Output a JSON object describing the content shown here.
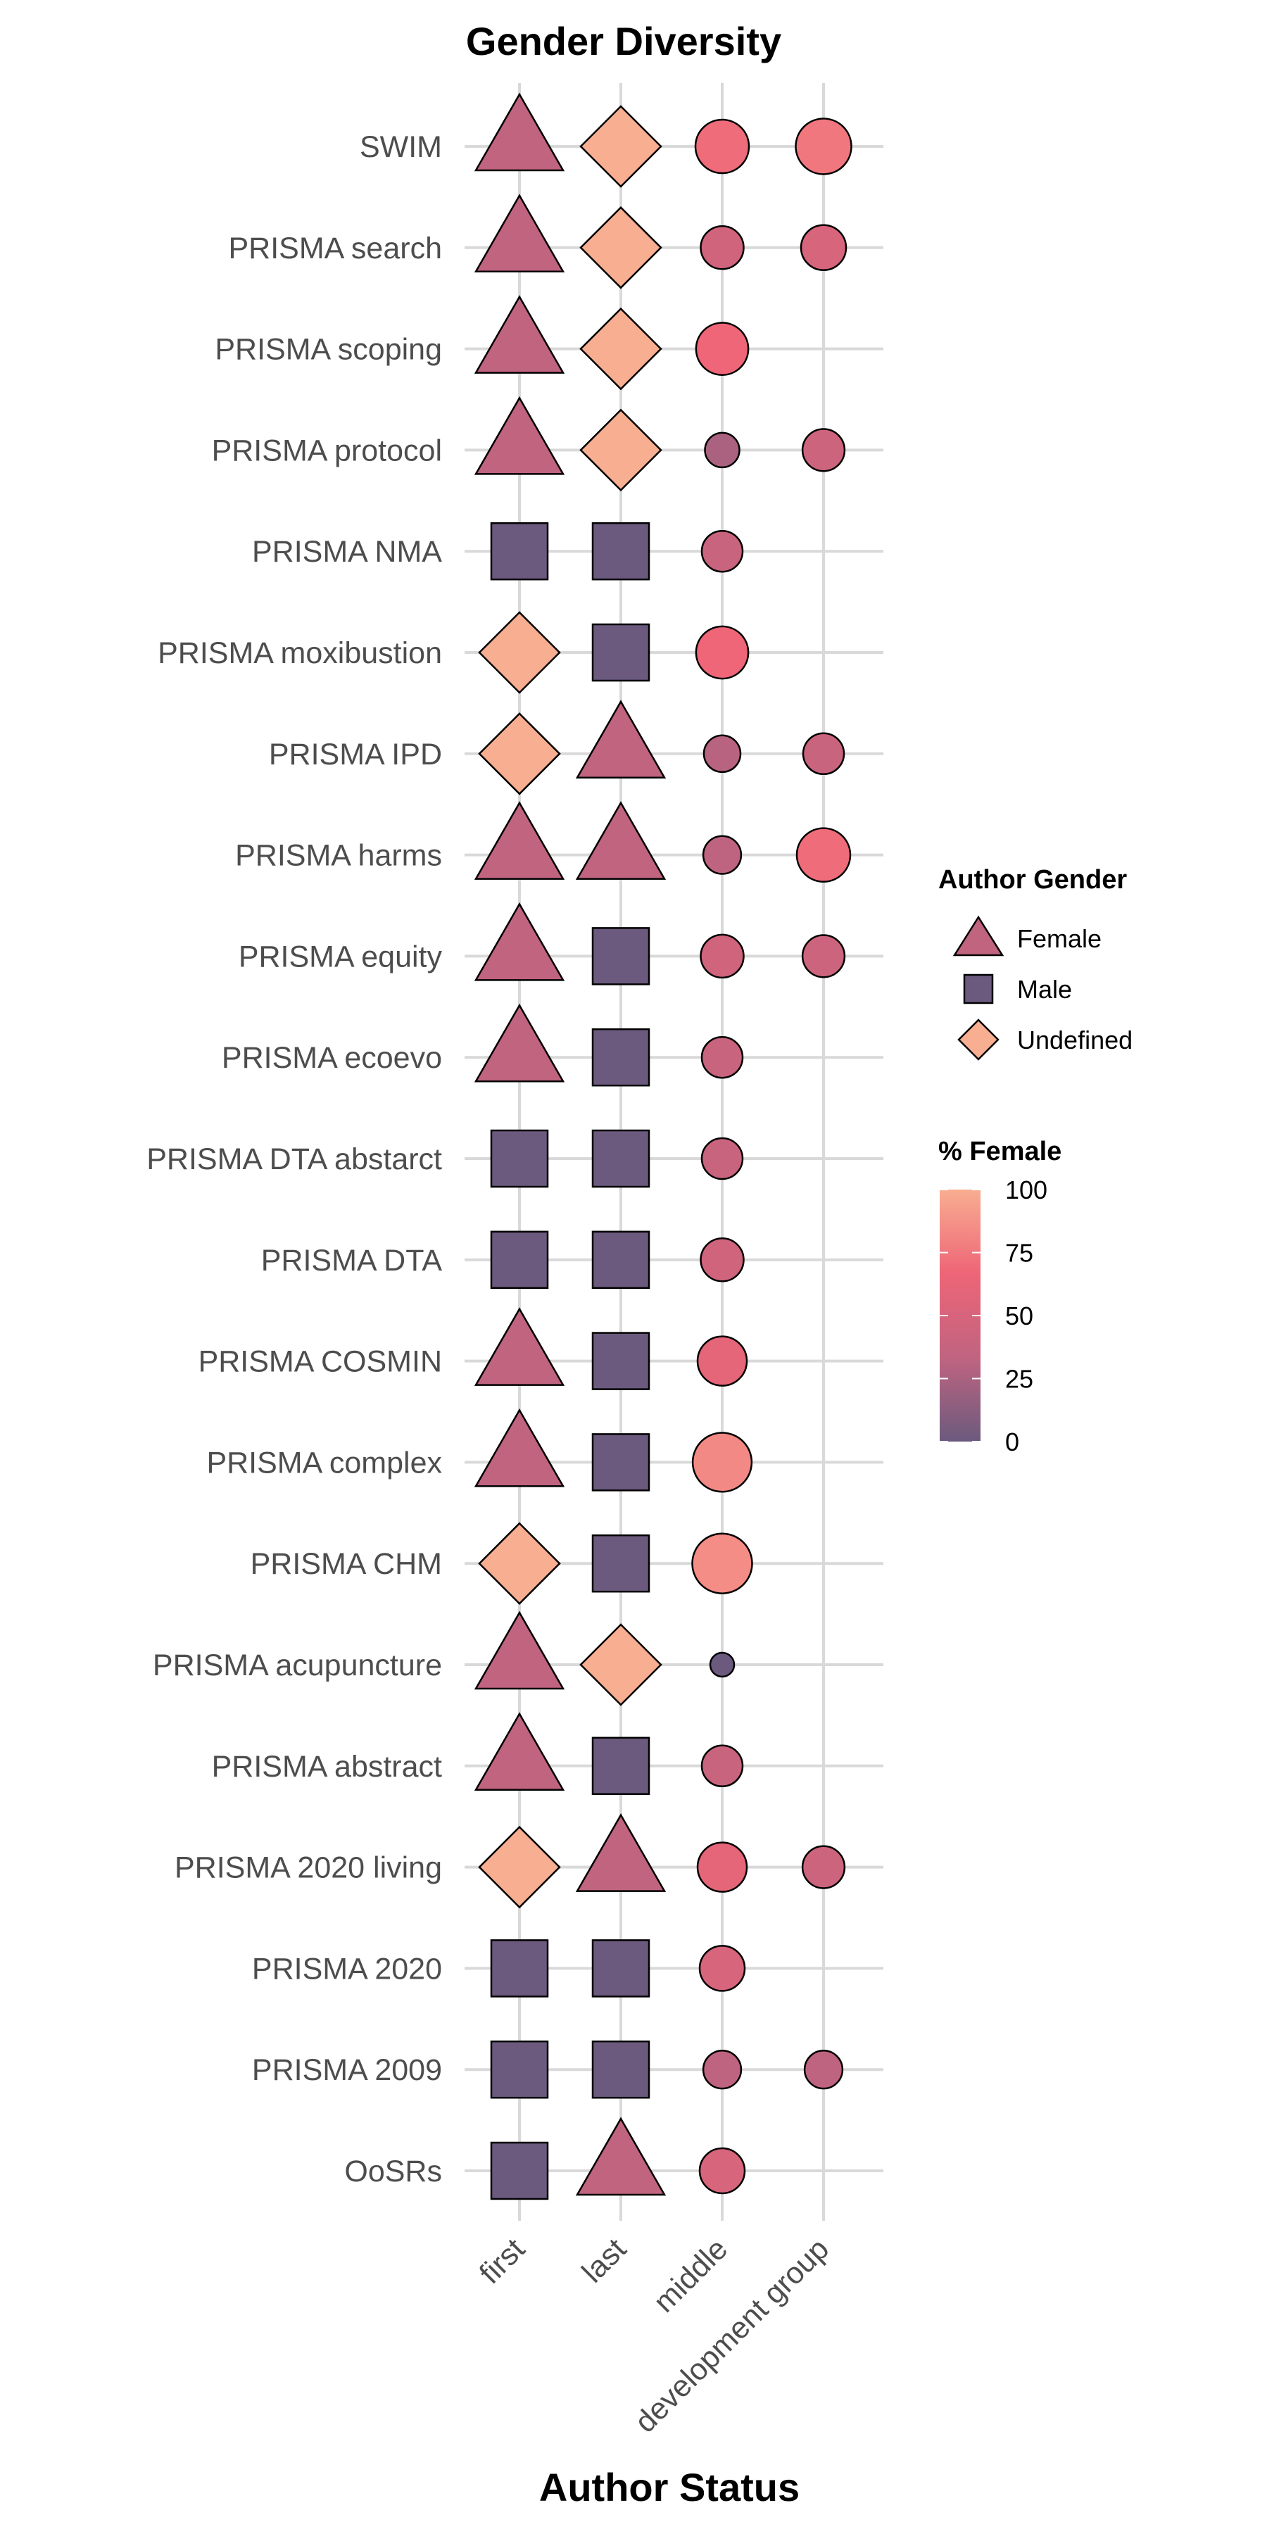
{
  "chart_data": {
    "type": "scatter",
    "title": "Gender Diversity",
    "xlabel": "Author Status",
    "ylabel": "",
    "x_categories": [
      "first",
      "last",
      "middle",
      "development group"
    ],
    "y_categories": [
      "SWIM",
      "PRISMA search",
      "PRISMA scoping",
      "PRISMA protocol",
      "PRISMA NMA ",
      "PRISMA moxibustion",
      "PRISMA IPD",
      "PRISMA harms",
      "PRISMA equity",
      "PRISMA ecoevo",
      "PRISMA DTA abstarct",
      "PRISMA DTA",
      "PRISMA COSMIN",
      "PRISMA complex",
      "PRISMA CHM",
      "PRISMA acupuncture ",
      "PRISMA abstract",
      "PRISMA 2020 living",
      "PRISMA 2020",
      "PRISMA 2009",
      "OoSRs"
    ],
    "grid": true,
    "legend_position": "right",
    "shape_legend": {
      "title": "Author Gender",
      "entries": [
        {
          "label": "Female",
          "shape": "triangle",
          "color": "#c06480"
        },
        {
          "label": "Male",
          "shape": "square",
          "color": "#6b5a7e"
        },
        {
          "label": "Undefined",
          "shape": "diamond",
          "color": "#f8ae91"
        }
      ]
    },
    "color_legend": {
      "title": "% Female",
      "range": [
        0,
        100
      ],
      "ticks": [
        0,
        25,
        50,
        75,
        100
      ],
      "colors": [
        "#6b5a7e",
        "#c06480",
        "#ee6577",
        "#f8ae91"
      ]
    },
    "first_author": [
      "Female",
      "Female",
      "Female",
      "Female",
      "Male",
      "Undefined",
      "Undefined",
      "Female",
      "Female",
      "Female",
      "Male",
      "Male",
      "Female",
      "Female",
      "Undefined",
      "Female",
      "Female",
      "Undefined",
      "Male",
      "Male",
      "Male"
    ],
    "last_author": [
      "Undefined",
      "Undefined",
      "Undefined",
      "Undefined",
      "Male",
      "Male",
      "Female",
      "Female",
      "Male",
      "Male",
      "Male",
      "Male",
      "Male",
      "Male",
      "Male",
      "Undefined",
      "Male",
      "Female",
      "Male",
      "Male",
      "Female"
    ],
    "middle_pct_female": [
      70,
      45,
      67,
      25,
      40,
      67,
      30,
      33,
      45,
      40,
      40,
      45,
      60,
      83,
      85,
      0,
      40,
      60,
      50,
      33,
      50
    ],
    "development_group_pct_female": [
      75,
      50,
      null,
      43,
      null,
      null,
      40,
      70,
      43,
      null,
      null,
      null,
      null,
      null,
      null,
      null,
      null,
      43,
      null,
      33,
      null
    ]
  }
}
